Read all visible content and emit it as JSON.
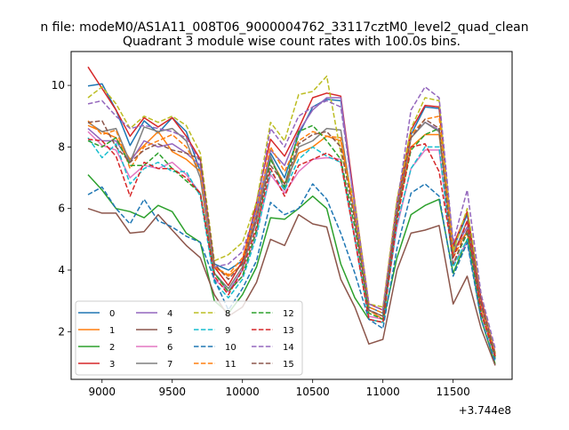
{
  "suptitle": "n file: modeM0/AS1A11_008T06_9000004762_33117cztM0_level2_quad_clean",
  "chart_data": {
    "type": "line",
    "title": "Quadrant 3 module wise count rates with 100.0s bins.",
    "xlabel": "",
    "ylabel": "",
    "x_offset_label": "+3.744e8",
    "xlim": [
      8780,
      11920
    ],
    "ylim": [
      0.45,
      11.1
    ],
    "xticks": [
      9000,
      9500,
      10000,
      10500,
      11000,
      11500
    ],
    "yticks": [
      2,
      4,
      6,
      8,
      10
    ],
    "grid": false,
    "legend": {
      "placement": "lower-left",
      "columns": 4
    },
    "x": [
      8900,
      9000,
      9100,
      9200,
      9300,
      9400,
      9500,
      9600,
      9700,
      9800,
      9900,
      10000,
      10100,
      10200,
      10300,
      10400,
      10500,
      10600,
      10700,
      10800,
      10900,
      11000,
      11100,
      11200,
      11300,
      11400,
      11500,
      11600,
      11700,
      11800
    ],
    "series": [
      {
        "name": "0",
        "color": "#1f77b4",
        "dash": false,
        "values": [
          9.98,
          10.05,
          9.2,
          8.05,
          8.85,
          8.45,
          8.95,
          8.5,
          7.2,
          4.2,
          4.0,
          4.3,
          6.0,
          7.8,
          7.0,
          8.4,
          9.3,
          9.55,
          9.5,
          6.1,
          2.8,
          2.6,
          6.0,
          8.4,
          9.3,
          9.25,
          4.7,
          5.8,
          3.0,
          1.1
        ]
      },
      {
        "name": "1",
        "color": "#ff7f0e",
        "dash": false,
        "values": [
          8.7,
          8.5,
          8.3,
          7.6,
          8.05,
          8.5,
          7.85,
          7.6,
          7.2,
          4.1,
          3.8,
          4.2,
          5.8,
          7.6,
          6.8,
          7.8,
          8.0,
          8.35,
          8.2,
          5.8,
          2.7,
          2.4,
          5.8,
          8.0,
          8.4,
          8.4,
          4.7,
          5.2,
          2.8,
          1.2
        ]
      },
      {
        "name": "2",
        "color": "#2ca02c",
        "dash": false,
        "values": [
          7.1,
          6.6,
          6.0,
          5.9,
          5.7,
          6.1,
          5.9,
          5.2,
          4.9,
          3.0,
          2.6,
          3.2,
          4.1,
          5.7,
          5.65,
          6.0,
          6.4,
          6.0,
          4.2,
          3.1,
          2.4,
          2.3,
          4.4,
          5.8,
          6.1,
          6.3,
          3.9,
          5.0,
          2.4,
          0.95
        ]
      },
      {
        "name": "3",
        "color": "#d62728",
        "dash": false,
        "values": [
          10.6,
          9.9,
          9.2,
          8.35,
          8.95,
          8.65,
          8.95,
          8.35,
          7.6,
          4.1,
          3.5,
          4.3,
          6.2,
          8.25,
          7.7,
          8.6,
          9.6,
          9.75,
          9.65,
          6.2,
          2.9,
          2.7,
          6.2,
          8.55,
          9.35,
          9.3,
          4.8,
          5.9,
          3.05,
          1.3
        ]
      },
      {
        "name": "4",
        "color": "#9467bd",
        "dash": false,
        "values": [
          8.6,
          8.2,
          8.2,
          7.5,
          8.2,
          8.0,
          8.1,
          7.8,
          7.4,
          3.9,
          3.3,
          4.0,
          5.8,
          7.9,
          7.4,
          8.5,
          9.2,
          9.6,
          9.6,
          6.0,
          2.7,
          2.5,
          5.9,
          8.3,
          8.8,
          8.55,
          4.6,
          5.4,
          2.9,
          1.25
        ]
      },
      {
        "name": "5",
        "color": "#8c564b",
        "dash": false,
        "values": [
          6.0,
          5.85,
          5.85,
          5.2,
          5.25,
          5.8,
          5.3,
          4.8,
          4.4,
          3.2,
          2.5,
          2.8,
          3.6,
          5.0,
          4.8,
          5.8,
          5.5,
          5.4,
          3.7,
          2.8,
          1.6,
          1.75,
          4.0,
          5.2,
          5.3,
          5.45,
          2.9,
          3.8,
          2.1,
          0.9
        ]
      },
      {
        "name": "6",
        "color": "#e377c2",
        "dash": false,
        "values": [
          8.5,
          8.05,
          7.9,
          7.0,
          7.4,
          7.3,
          7.5,
          7.1,
          6.5,
          3.7,
          3.3,
          3.8,
          5.2,
          7.1,
          6.5,
          7.2,
          7.6,
          7.65,
          7.6,
          5.1,
          2.5,
          2.4,
          5.4,
          7.3,
          7.9,
          7.9,
          4.2,
          4.9,
          2.6,
          1.15
        ]
      },
      {
        "name": "7",
        "color": "#7f7f7f",
        "dash": false,
        "values": [
          8.8,
          8.5,
          8.6,
          7.5,
          8.65,
          8.5,
          8.6,
          8.2,
          7.0,
          3.9,
          3.4,
          4.1,
          5.6,
          7.7,
          6.6,
          8.0,
          8.2,
          8.6,
          8.55,
          5.7,
          2.7,
          2.5,
          5.9,
          8.3,
          8.8,
          8.5,
          4.5,
          5.6,
          2.8,
          1.2
        ]
      },
      {
        "name": "8",
        "color": "#bcbd22",
        "dash": true,
        "values": [
          9.6,
          9.95,
          9.4,
          8.6,
          9.0,
          8.8,
          9.0,
          8.7,
          7.8,
          4.3,
          4.5,
          4.9,
          6.2,
          8.8,
          8.2,
          9.7,
          9.8,
          10.3,
          7.8,
          6.2,
          2.9,
          2.8,
          6.3,
          8.6,
          9.6,
          9.5,
          4.6,
          6.0,
          3.2,
          1.3
        ]
      },
      {
        "name": "9",
        "color": "#17becf",
        "dash": true,
        "values": [
          8.3,
          7.65,
          8.1,
          6.8,
          7.3,
          7.5,
          7.2,
          7.2,
          6.4,
          3.6,
          3.1,
          3.7,
          5.1,
          7.2,
          6.6,
          7.6,
          8.0,
          7.7,
          7.5,
          5.0,
          2.4,
          2.3,
          5.5,
          7.3,
          8.0,
          8.0,
          4.1,
          5.0,
          2.6,
          1.2
        ]
      },
      {
        "name": "10",
        "color": "#1f77b4",
        "dash": true,
        "values": [
          6.45,
          6.7,
          6.0,
          5.5,
          6.3,
          5.6,
          5.4,
          5.1,
          4.9,
          3.7,
          2.7,
          3.4,
          4.3,
          6.2,
          5.8,
          6.0,
          6.8,
          6.3,
          5.2,
          3.9,
          2.4,
          2.1,
          4.7,
          6.5,
          6.8,
          6.4,
          3.8,
          4.9,
          2.4,
          1.0
        ]
      },
      {
        "name": "11",
        "color": "#ff7f0e",
        "dash": true,
        "values": [
          8.85,
          8.4,
          8.55,
          7.3,
          8.0,
          8.2,
          8.4,
          8.0,
          7.2,
          4.1,
          3.85,
          4.4,
          5.9,
          8.0,
          7.2,
          8.2,
          8.5,
          8.35,
          8.3,
          5.8,
          2.8,
          2.6,
          6.0,
          8.4,
          8.9,
          9.0,
          4.4,
          5.3,
          2.8,
          1.25
        ]
      },
      {
        "name": "12",
        "color": "#2ca02c",
        "dash": true,
        "values": [
          8.2,
          8.0,
          8.3,
          7.4,
          7.4,
          7.8,
          7.3,
          6.9,
          6.5,
          3.9,
          3.3,
          3.8,
          5.3,
          7.6,
          6.7,
          8.5,
          8.7,
          8.2,
          7.6,
          5.4,
          2.6,
          2.4,
          5.7,
          7.9,
          8.4,
          8.6,
          4.2,
          5.2,
          2.6,
          1.15
        ]
      },
      {
        "name": "13",
        "color": "#d62728",
        "dash": true,
        "values": [
          8.25,
          8.2,
          7.7,
          6.4,
          7.5,
          7.3,
          7.3,
          7.0,
          6.5,
          3.8,
          3.2,
          4.0,
          5.4,
          7.3,
          6.4,
          7.4,
          7.6,
          7.8,
          7.5,
          5.0,
          2.4,
          2.3,
          5.6,
          8.0,
          8.1,
          7.2,
          4.4,
          5.6,
          2.6,
          1.2
        ]
      },
      {
        "name": "14",
        "color": "#9467bd",
        "dash": true,
        "values": [
          9.4,
          9.5,
          9.0,
          8.6,
          8.7,
          8.6,
          8.5,
          8.3,
          7.5,
          4.1,
          4.2,
          4.6,
          6.0,
          8.6,
          8.0,
          9.0,
          9.3,
          9.5,
          9.3,
          6.1,
          2.9,
          2.7,
          6.1,
          9.2,
          9.95,
          9.6,
          4.9,
          6.6,
          3.2,
          1.45
        ]
      },
      {
        "name": "15",
        "color": "#8c564b",
        "dash": true,
        "values": [
          8.8,
          8.85,
          8.0,
          7.5,
          7.9,
          8.1,
          7.9,
          7.8,
          7.6,
          4.2,
          3.7,
          4.2,
          5.7,
          7.4,
          6.8,
          8.1,
          8.4,
          8.5,
          8.0,
          5.6,
          2.7,
          2.5,
          5.9,
          8.3,
          8.9,
          8.6,
          4.2,
          5.3,
          2.9,
          1.25
        ]
      }
    ]
  }
}
